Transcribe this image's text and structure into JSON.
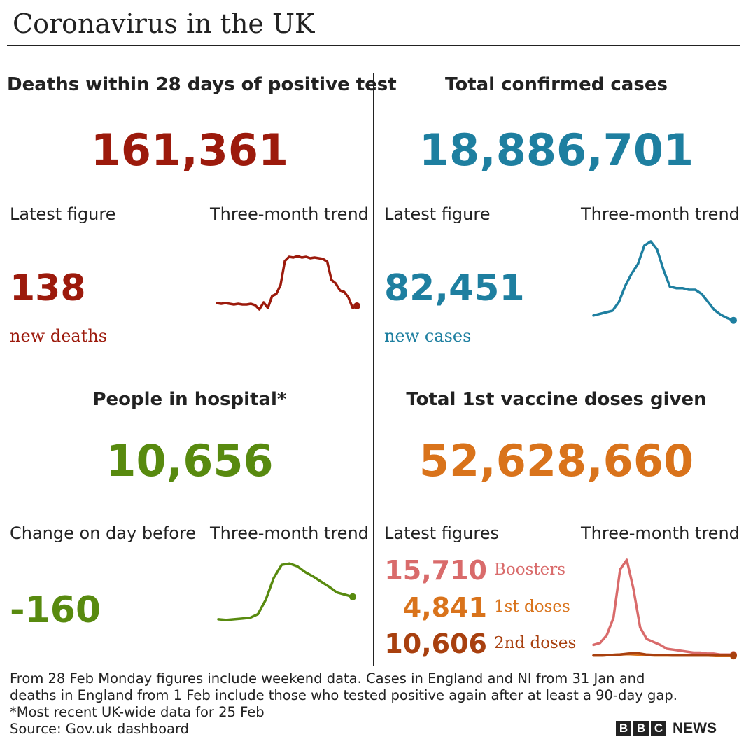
{
  "title": "Coronavirus in the UK",
  "colors": {
    "deaths": "#9c1a0c",
    "cases": "#1e7fa0",
    "hospital": "#588a0f",
    "vaccine": "#d9731b",
    "boosters": "#d96b6b",
    "first_doses": "#d9731b",
    "second_doses": "#a8400f"
  },
  "deaths": {
    "heading": "Deaths within 28 days of positive test",
    "total": "161,361",
    "latest_label": "Latest figure",
    "trend_label": "Three-month trend",
    "latest_value": "138",
    "latest_sub": "new deaths"
  },
  "cases": {
    "heading": "Total confirmed cases",
    "total": "18,886,701",
    "latest_label": "Latest figure",
    "trend_label": "Three-month trend",
    "latest_value": "82,451",
    "latest_sub": "new cases"
  },
  "hospital": {
    "heading": "People in hospital*",
    "total": "10,656",
    "latest_label": "Change on day before",
    "trend_label": "Three-month trend",
    "latest_value": "-160"
  },
  "vaccine": {
    "heading": "Total 1st vaccine doses given",
    "total": "52,628,660",
    "latest_label": "Latest figures",
    "trend_label": "Three-month trend",
    "boosters_value": "15,710",
    "boosters_label": "Boosters",
    "first_value": "4,841",
    "first_label": "1st doses",
    "second_value": "10,606",
    "second_label": "2nd doses"
  },
  "footer": {
    "line1": "From 28 Feb Monday figures include weekend data. Cases in England and NI from 31 Jan and",
    "line2": "deaths in England from 1 Feb include those who tested positive again after at least a 90-day gap.",
    "line3": "*Most recent UK-wide data for 25 Feb",
    "line4": "Source: Gov.uk dashboard"
  },
  "logo": {
    "letters": [
      "B",
      "B",
      "C"
    ],
    "text": "NEWS"
  },
  "chart_data": [
    {
      "type": "line",
      "series": [
        {
          "name": "",
          "values": [
            12,
            11,
            12,
            11,
            10,
            11,
            10,
            10,
            11,
            9,
            3,
            13,
            5,
            22,
            25,
            38,
            72,
            78,
            77,
            79,
            77,
            78,
            76,
            77,
            76,
            75,
            71,
            45,
            40,
            30,
            28,
            20,
            5,
            8
          ]
        }
      ]
    },
    {
      "type": "line",
      "series": [
        {
          "name": "",
          "values": [
            8,
            10,
            12,
            14,
            25,
            45,
            60,
            72,
            95,
            100,
            90,
            65,
            44,
            42,
            42,
            40,
            40,
            35,
            25,
            15,
            9,
            5,
            2
          ]
        }
      ]
    },
    {
      "type": "line",
      "series": [
        {
          "name": "",
          "values": [
            3,
            2,
            3,
            4,
            5,
            10,
            30,
            60,
            78,
            80,
            76,
            68,
            62,
            55,
            48,
            40,
            37,
            34
          ]
        }
      ]
    },
    {
      "type": "line",
      "series": [
        {
          "name": "Boosters",
          "values": [
            12,
            14,
            22,
            40,
            90,
            100,
            70,
            30,
            18,
            15,
            12,
            8,
            7,
            6,
            5,
            4,
            4,
            3,
            3,
            2,
            2,
            2
          ]
        },
        {
          "name": "1st doses",
          "values": [
            1,
            1,
            1.5,
            2,
            2.5,
            2,
            1.5,
            1,
            1,
            1,
            1,
            1,
            1,
            1,
            0.5,
            0.5,
            0.5
          ]
        },
        {
          "name": "2nd doses",
          "values": [
            1,
            1,
            1.5,
            2,
            3,
            3.5,
            2,
            1.5,
            1.5,
            1,
            1,
            1,
            1,
            1,
            1,
            1,
            1
          ]
        }
      ]
    }
  ]
}
